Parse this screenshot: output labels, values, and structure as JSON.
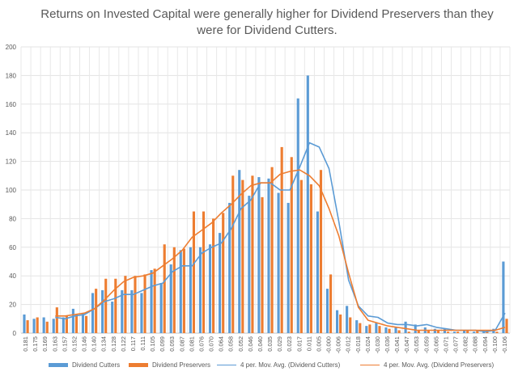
{
  "chart_data": {
    "type": "bar",
    "title_line1": "Returns on Invested Capital were generally higher for Dividend Preservers than they",
    "title_line2": "were for Dividend Cutters.",
    "ylim": [
      0,
      200
    ],
    "yticks": [
      0,
      20,
      40,
      60,
      80,
      100,
      120,
      140,
      160,
      180,
      200
    ],
    "grid": true,
    "legend_position": "bottom",
    "categories": [
      "0.181",
      "0.175",
      "0.169",
      "0.163",
      "0.157",
      "0.152",
      "0.146",
      "0.140",
      "0.134",
      "0.128",
      "0.122",
      "0.117",
      "0.111",
      "0.105",
      "0.099",
      "0.093",
      "0.087",
      "0.081",
      "0.076",
      "0.070",
      "0.064",
      "0.058",
      "0.052",
      "0.046",
      "0.040",
      "0.035",
      "0.029",
      "0.023",
      "0.017",
      "0.011",
      "0.005",
      "-0.000",
      "-0.006",
      "-0.012",
      "-0.018",
      "-0.024",
      "-0.030",
      "-0.036",
      "-0.041",
      "-0.047",
      "-0.053",
      "-0.059",
      "-0.065",
      "-0.071",
      "-0.077",
      "-0.082",
      "-0.088",
      "-0.094",
      "-0.100",
      "-0.106"
    ],
    "bar_series": [
      {
        "name": "Dividend Cutters",
        "color": "#5b9bd5",
        "values": [
          13,
          10,
          11,
          10,
          11,
          17,
          14,
          28,
          30,
          22,
          30,
          30,
          28,
          44,
          35,
          48,
          58,
          60,
          60,
          62,
          70,
          91,
          114,
          96,
          109,
          108,
          98,
          91,
          164,
          180,
          85,
          31,
          16,
          19,
          9,
          5,
          7,
          4,
          4,
          8,
          6,
          4,
          3,
          3,
          1,
          2,
          1,
          1,
          3,
          50
        ]
      },
      {
        "name": "Dividend Preservers",
        "color": "#ed7d31",
        "values": [
          9,
          11,
          8,
          18,
          12,
          13,
          12,
          31,
          38,
          38,
          40,
          40,
          41,
          45,
          62,
          60,
          59,
          85,
          85,
          80,
          84,
          110,
          107,
          110,
          95,
          116,
          130,
          123,
          107,
          104,
          114,
          41,
          13,
          11,
          7,
          6,
          5,
          3,
          2,
          1,
          2,
          2,
          2,
          1,
          1,
          2,
          2,
          2,
          1,
          10
        ]
      }
    ],
    "line_series": [
      {
        "name": "4 per. Mov. Avg. (Dividend Cutters)",
        "color": "#5b9bd5",
        "values": [
          null,
          null,
          null,
          11,
          10,
          12,
          13,
          17,
          22,
          24,
          27,
          27,
          30,
          33,
          35,
          43,
          47,
          47,
          56,
          60,
          63,
          73,
          87,
          93,
          105,
          105,
          100,
          100,
          116,
          133,
          130,
          115,
          78,
          37,
          19,
          12,
          11,
          7,
          6,
          6,
          5,
          6,
          4,
          3,
          2,
          2,
          2,
          1,
          2,
          14
        ]
      },
      {
        "name": "4 per. Mov. Avg. (Dividend Preservers)",
        "color": "#ed7d31",
        "values": [
          null,
          null,
          null,
          12,
          12,
          13,
          14,
          17,
          23,
          30,
          36,
          39,
          40,
          42,
          47,
          52,
          58,
          67,
          72,
          77,
          84,
          90,
          97,
          103,
          105,
          105,
          111,
          113,
          114,
          110,
          103,
          87,
          68,
          42,
          18,
          9,
          7,
          5,
          4,
          3,
          2,
          2,
          2,
          2,
          2,
          2,
          2,
          2,
          2,
          4
        ]
      }
    ]
  }
}
